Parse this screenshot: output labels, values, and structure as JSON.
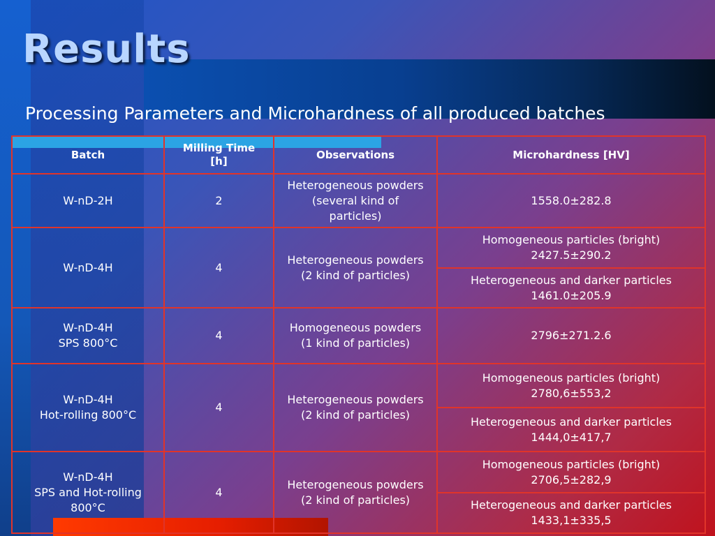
{
  "slide": {
    "title": "Results",
    "subtitle": "Processing Parameters and Microhardness of all produced batches"
  },
  "table": {
    "headers": {
      "batch": "Batch",
      "milling_line1": "Milling Time",
      "milling_line2": "[h]",
      "observations": "Observations",
      "microhardness": "Microhardness [HV]"
    },
    "rows": [
      {
        "batch": [
          "W-nD-2H"
        ],
        "milling": "2",
        "observations": [
          "Heterogeneous powders",
          "(several kind of",
          "particles)"
        ],
        "micro": [
          [
            "1558.0±282.8"
          ]
        ]
      },
      {
        "batch": [
          "W-nD-4H"
        ],
        "milling": "4",
        "observations": [
          "Heterogeneous powders",
          "(2 kind of particles)"
        ],
        "micro": [
          [
            "Homogeneous particles (bright)",
            "2427.5±290.2"
          ],
          [
            "Heterogeneous and darker particles",
            "1461.0±205.9"
          ]
        ]
      },
      {
        "batch": [
          "W-nD-4H",
          "SPS 800°C"
        ],
        "milling": "4",
        "observations": [
          "Homogeneous powders",
          "(1 kind of particles)"
        ],
        "micro": [
          [
            "2796±271.2.6"
          ]
        ]
      },
      {
        "batch": [
          "W-nD-4H",
          "Hot-rolling 800°C"
        ],
        "milling": "4",
        "observations": [
          "Heterogeneous powders",
          "(2 kind of particles)"
        ],
        "micro": [
          [
            "Homogeneous particles (bright)",
            "2780,6±553,2"
          ],
          [
            "Heterogeneous and darker particles",
            "1444,0±417,7"
          ]
        ]
      },
      {
        "batch": [
          "W-nD-4H",
          "SPS and Hot-rolling",
          "800°C"
        ],
        "milling": "4",
        "observations": [
          "Heterogeneous powders",
          "(2 kind of particles)"
        ],
        "micro": [
          [
            "Homogeneous particles (bright)",
            "2706,5±282,9"
          ],
          [
            "Heterogeneous and darker particles",
            "1433,1±335,5"
          ]
        ]
      }
    ]
  }
}
